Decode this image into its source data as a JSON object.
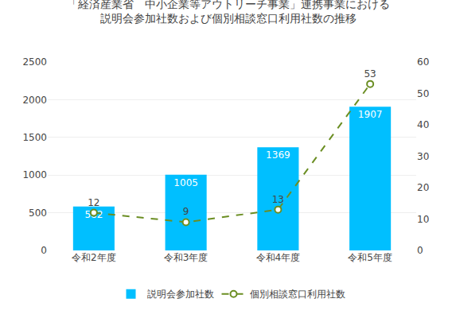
{
  "chart_data": {
    "type": "bar",
    "title": "「経済産業省　中小企業等アウトリーチ事業」連携事業における",
    "subtitle": "説明会参加社数および個別相談窓口利用社数の推移",
    "categories": [
      "令和2年度",
      "令和3年度",
      "令和4年度",
      "令和5年度"
    ],
    "series": [
      {
        "name": "説明会参加社数",
        "type": "bar",
        "color": "#00BFFF",
        "values": [
          582,
          1005,
          1369,
          1907
        ]
      },
      {
        "name": "個別相談窓口利用社数",
        "type": "line",
        "axis": "y2",
        "color": "#6B8E23",
        "marker": "circle",
        "line_style": "dash",
        "values": [
          12,
          9,
          13,
          53
        ]
      }
    ],
    "ylim": [
      0,
      2500
    ],
    "yticks": [
      0,
      500,
      1000,
      1500,
      2000,
      2500
    ],
    "y2lim": [
      0,
      60
    ],
    "y2ticks": [
      0,
      10,
      20,
      30,
      40,
      50,
      60
    ],
    "grid": true,
    "legend": "bottom",
    "data_labels": true
  }
}
